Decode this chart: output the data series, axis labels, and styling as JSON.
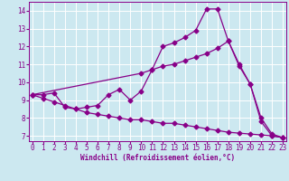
{
  "xlabel": "Windchill (Refroidissement éolien,°C)",
  "background_color": "#cce8f0",
  "grid_color": "#ffffff",
  "line_color": "#880088",
  "x_ticks": [
    0,
    1,
    2,
    3,
    4,
    5,
    6,
    7,
    8,
    9,
    10,
    11,
    12,
    13,
    14,
    15,
    16,
    17,
    18,
    19,
    20,
    21,
    22,
    23
  ],
  "y_ticks": [
    7,
    8,
    9,
    10,
    11,
    12,
    13,
    14
  ],
  "ylim": [
    6.7,
    14.5
  ],
  "xlim": [
    -0.3,
    23.3
  ],
  "line_jagged_x": [
    0,
    1,
    2,
    3,
    4,
    5,
    6,
    7,
    8,
    9,
    10,
    11,
    12,
    13,
    14,
    15,
    16,
    17,
    18,
    19,
    20,
    21,
    22,
    23
  ],
  "line_jagged_y": [
    9.3,
    9.3,
    9.4,
    8.6,
    8.5,
    8.6,
    8.7,
    9.3,
    9.6,
    9.0,
    9.5,
    10.7,
    12.0,
    12.2,
    12.5,
    12.9,
    14.1,
    14.1,
    12.3,
    10.9,
    9.9,
    7.8,
    7.0,
    6.9
  ],
  "line_upper_x": [
    0,
    10,
    11,
    12,
    13,
    14,
    15,
    16,
    17,
    18,
    19,
    20,
    21,
    22,
    23
  ],
  "line_upper_y": [
    9.3,
    10.5,
    10.7,
    10.9,
    11.0,
    11.2,
    11.4,
    11.6,
    11.9,
    12.3,
    11.0,
    9.9,
    8.0,
    7.1,
    6.9
  ],
  "line_lower_x": [
    0,
    1,
    2,
    3,
    4,
    5,
    6,
    7,
    8,
    9,
    10,
    11,
    12,
    13,
    14,
    15,
    16,
    17,
    18,
    19,
    20,
    21,
    22,
    23
  ],
  "line_lower_y": [
    9.3,
    9.1,
    8.9,
    8.7,
    8.5,
    8.3,
    8.2,
    8.1,
    8.0,
    7.9,
    7.9,
    7.8,
    7.7,
    7.7,
    7.6,
    7.5,
    7.4,
    7.3,
    7.2,
    7.15,
    7.1,
    7.05,
    7.0,
    6.9
  ],
  "marker_size": 2.5,
  "line_width": 0.9,
  "tick_fontsize": 5.5
}
